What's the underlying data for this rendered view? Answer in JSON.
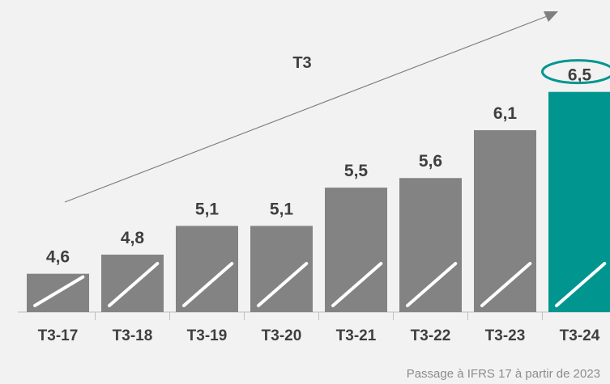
{
  "chart_data": {
    "type": "bar",
    "categories": [
      "T3-17",
      "T3-18",
      "T3-19",
      "T3-20",
      "T3-21",
      "T3-22",
      "T3-23",
      "T3-24"
    ],
    "values": [
      4.6,
      4.8,
      5.1,
      5.1,
      5.5,
      5.6,
      6.1,
      6.5
    ],
    "value_labels": [
      "4,6",
      "4,8",
      "5,1",
      "5,1",
      "5,5",
      "5,6",
      "6,1",
      "6,5"
    ],
    "highlight_index": 7,
    "trend_label": "T3",
    "footnote": "Passage à IFRS 17 à partir de 2023",
    "ylim": [
      4.2,
      6.7
    ],
    "grid": false
  },
  "colors": {
    "bar": "#838383",
    "highlight_bar": "#00968f",
    "text": "#3f3f3f",
    "arrow": "#7f7f7f",
    "background": "#f2f2f2"
  },
  "icons": {
    "highlight": "ellipse-circle-icon",
    "trend": "arrow-up-right-icon"
  }
}
